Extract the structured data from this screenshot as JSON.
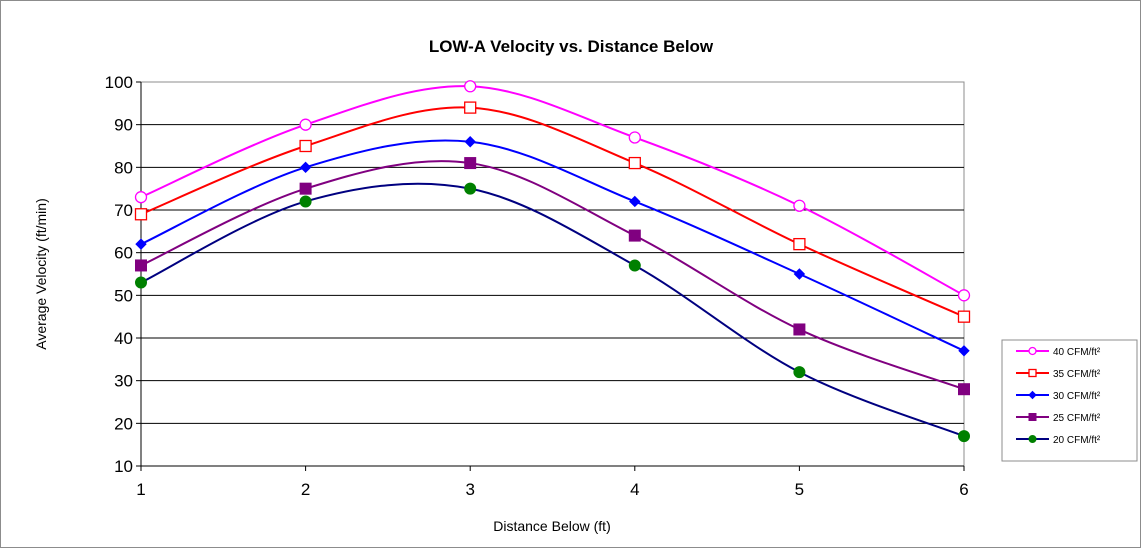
{
  "chart_data": {
    "type": "line",
    "title": "LOW-A Velocity vs. Distance Below",
    "xlabel": "Distance Below (ft)",
    "ylabel": "Average Velocity (ft/min)",
    "x": [
      1,
      2,
      3,
      4,
      5,
      6
    ],
    "xlim": [
      1,
      6
    ],
    "ylim": [
      10,
      100
    ],
    "x_ticks": [
      "1",
      "2",
      "3",
      "4",
      "5",
      "6"
    ],
    "y_ticks": [
      "10",
      "20",
      "30",
      "40",
      "50",
      "60",
      "70",
      "80",
      "90",
      "100"
    ],
    "grid": "horizontal",
    "legend_position": "right",
    "series": [
      {
        "name": "40 CFM/ft²",
        "values": [
          73,
          90,
          99,
          87,
          71,
          50
        ],
        "color": "#ff00ff",
        "marker": "circle-open"
      },
      {
        "name": "35 CFM/ft²",
        "values": [
          69,
          85,
          94,
          81,
          62,
          45
        ],
        "color": "#ff0000",
        "marker": "square-open"
      },
      {
        "name": "30 CFM/ft²",
        "values": [
          62,
          80,
          86,
          72,
          55,
          37
        ],
        "color": "#0000ff",
        "marker": "diamond-filled"
      },
      {
        "name": "25 CFM/ft²",
        "values": [
          57,
          75,
          81,
          64,
          42,
          28
        ],
        "color": "#800080",
        "marker": "square-filled"
      },
      {
        "name": "20 CFM/ft²",
        "values": [
          53,
          72,
          75,
          57,
          32,
          17
        ],
        "color": "#000080",
        "marker": "circle-filled",
        "marker_color": "#008000"
      }
    ]
  }
}
